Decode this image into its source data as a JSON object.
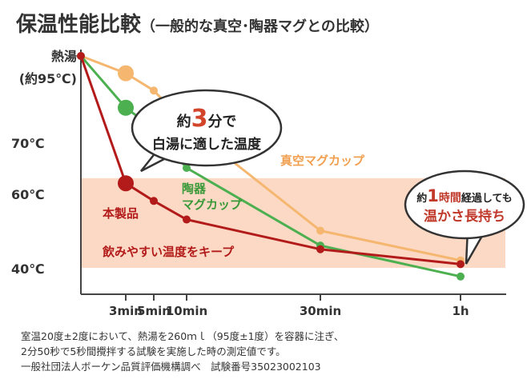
{
  "title": "保温性能比較",
  "subtitle": "（一般的な真空･陶器マグとの比較）",
  "chart_data": {
    "type": "line",
    "x_ticks": [
      {
        "label": "3min",
        "minutes": 3
      },
      {
        "label": "5min",
        "minutes": 5
      },
      {
        "label": "10min",
        "minutes": 10
      },
      {
        "label": "30min",
        "minutes": 30
      },
      {
        "label": "1h",
        "minutes": 60
      }
    ],
    "y_ticks": [
      {
        "label": "40℃",
        "value": 40
      },
      {
        "label": "60℃",
        "value": 60
      },
      {
        "label": "70℃",
        "value": 70
      }
    ],
    "start_label_line1": "熱湯",
    "start_label_line2": "(約95℃)",
    "highlight_band": {
      "min": 40,
      "max": 63
    },
    "series": [
      {
        "name": "真空マグカップ",
        "color": "#f5b770",
        "marker_index": 1,
        "points": [
          [
            0,
            95
          ],
          [
            3,
            90
          ],
          [
            5,
            85
          ],
          [
            10,
            75
          ],
          [
            30,
            50
          ],
          [
            60,
            42
          ]
        ]
      },
      {
        "name": "陶器マグカップ",
        "color": "#4caf50",
        "marker_index": 1,
        "points": [
          [
            0,
            95
          ],
          [
            3,
            80
          ],
          [
            5,
            74
          ],
          [
            10,
            65
          ],
          [
            30,
            46
          ],
          [
            60,
            38
          ]
        ]
      },
      {
        "name": "本製品",
        "color": "#b31b1b",
        "marker_index": 1,
        "points": [
          [
            0,
            95
          ],
          [
            3,
            62
          ],
          [
            5,
            58
          ],
          [
            10,
            53
          ],
          [
            30,
            45
          ],
          [
            60,
            41
          ]
        ]
      }
    ],
    "annotations": {
      "bubble_line1_pre": "約",
      "bubble_line1_num": "3",
      "bubble_line1_post": "分で",
      "bubble_line2": "白湯に適した温度",
      "product_label": "本製品",
      "keep_label": "飲みやすい温度をキープ",
      "right_line1_pre": "約",
      "right_line1_num": "1",
      "right_line1_unit": "時間",
      "right_line1_post": "経過しても",
      "right_line2": "温かさ長持ち",
      "vacuum_label": "真空マグカップ",
      "ceramic_label_line1": "陶器",
      "ceramic_label_line2": "マグカップ"
    }
  },
  "notes": [
    "室温20度±2度において、熱湯を260ｍｌ（95度±1度）を容器に注ぎ、",
    "2分50秒で5秒間攪拌する試験を実施した時の測定値です。",
    "一般社団法人ボーケン品質評価機構調べ　試験番号35023002103"
  ]
}
